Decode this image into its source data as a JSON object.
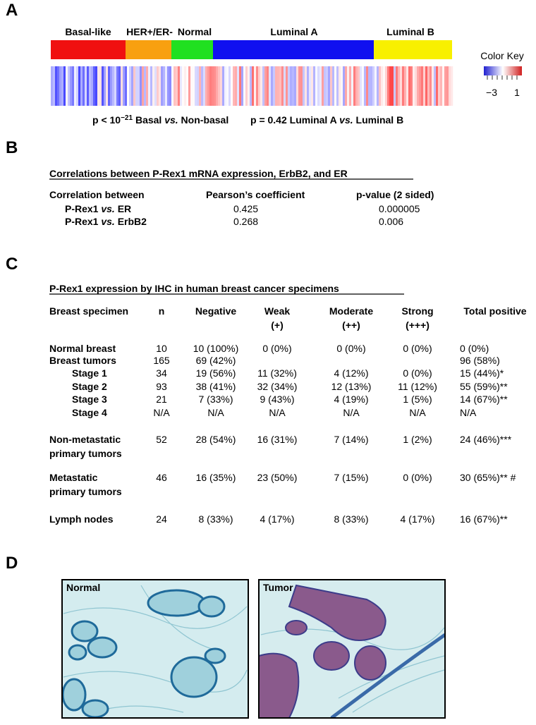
{
  "panels": {
    "A": {
      "label": "A",
      "subtypes": [
        "Basal-like",
        "HER+/ER-",
        "Normal",
        "Luminal A",
        "Luminal B"
      ],
      "color_key": {
        "title": "Color Key",
        "labels": [
          "−3",
          "1"
        ]
      },
      "annotations": [
        [
          "p < 10",
          "−21",
          " Basal ",
          "vs.",
          " Non-basal"
        ],
        [
          "p = 0.42 Luminal A ",
          "vs.",
          " Luminal B"
        ]
      ]
    },
    "B": {
      "label": "B",
      "title": "Correlations between P-Rex1 mRNA expression, ErbB2, and ER",
      "header": [
        "Correlation between",
        "Pearson’s coefficient",
        "p-value (2 sided)"
      ],
      "rows": [
        {
          "label": [
            "P-Rex1 ",
            "vs.",
            " ER"
          ],
          "pearson": "0.425",
          "p": "0.000005"
        },
        {
          "label": [
            "P-Rex1 ",
            "vs.",
            " ErbB2"
          ],
          "pearson": "0.268",
          "p": "0.006"
        }
      ]
    },
    "C": {
      "label": "C",
      "title": "P-Rex1 expression by IHC in human breast cancer specimens",
      "header": [
        [
          "Breast specimen"
        ],
        [
          "n"
        ],
        [
          "Negative"
        ],
        [
          "Weak",
          "(+)"
        ],
        [
          "Moderate",
          "(++)"
        ],
        [
          "Strong",
          "(+++)"
        ],
        [
          "Total positive"
        ]
      ],
      "rows": [
        [
          [
            "Normal breast"
          ],
          "10",
          "10 (100%)",
          "0 (0%)",
          "0 (0%)",
          "0 (0%)",
          "0 (0%)"
        ],
        [
          [
            "Breast tumors"
          ],
          "165",
          "69 (42%)",
          null,
          null,
          null,
          "96 (58%)"
        ],
        [
          [
            "Stage 1"
          ],
          "34",
          "19 (56%)",
          "11 (32%)",
          "4 (12%)",
          "0 (0%)",
          "15 (44%)*"
        ],
        [
          [
            "Stage 2"
          ],
          "93",
          "38 (41%)",
          "32 (34%)",
          "12 (13%)",
          "11 (12%)",
          "55 (59%)**"
        ],
        [
          [
            "Stage 3"
          ],
          "21",
          "7 (33%)",
          "9 (43%)",
          "4 (19%)",
          "1 (5%)",
          "14 (67%)**"
        ],
        [
          [
            "Stage 4"
          ],
          "N/A",
          "N/A",
          "N/A",
          "N/A",
          "N/A",
          "N/A"
        ],
        [
          [
            "Non-metastatic",
            "primary tumors"
          ],
          "52",
          "28 (54%)",
          "16 (31%)",
          "7 (14%)",
          "1 (2%)",
          "24 (46%)***"
        ],
        [
          [
            "Metastatic",
            "primary tumors"
          ],
          "46",
          "16 (35%)",
          "23 (50%)",
          "7 (15%)",
          "0 (0%)",
          "30 (65%)** #"
        ],
        [
          [
            "Lymph nodes"
          ],
          "24",
          "8 (33%)",
          "4 (17%)",
          "8 (33%)",
          "4 (17%)",
          "16 (67%)**"
        ]
      ]
    },
    "D": {
      "label": "D",
      "images": [
        "Normal",
        "Tumor"
      ]
    }
  }
}
